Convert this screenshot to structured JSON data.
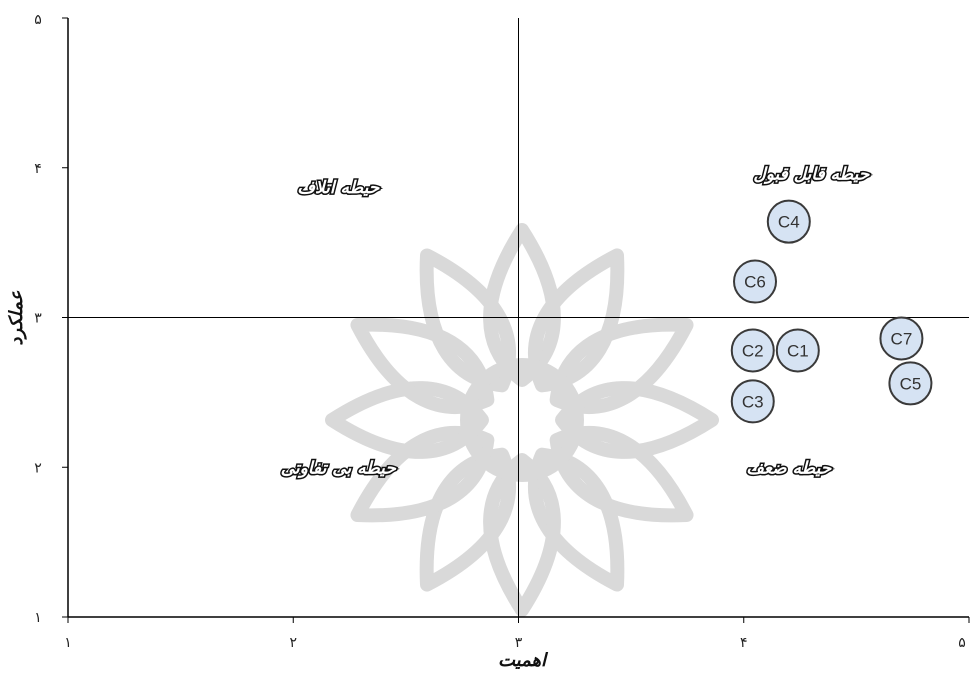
{
  "chart_data": {
    "type": "scatter",
    "xlabel": "اهمیت",
    "ylabel": "عملکرد",
    "xlim": [
      1,
      5
    ],
    "ylim": [
      1,
      5
    ],
    "x_ticks": [
      {
        "value": 1,
        "label": "۱"
      },
      {
        "value": 2,
        "label": "۲"
      },
      {
        "value": 3,
        "label": "۳"
      },
      {
        "value": 4,
        "label": "۴"
      },
      {
        "value": 5,
        "label": "۵"
      }
    ],
    "y_ticks": [
      {
        "value": 1,
        "label": "۱"
      },
      {
        "value": 2,
        "label": "۲"
      },
      {
        "value": 3,
        "label": "۳"
      },
      {
        "value": 4,
        "label": "۴"
      },
      {
        "value": 5,
        "label": "۵"
      }
    ],
    "divider": {
      "x": 3,
      "y": 3
    },
    "quadrants": [
      {
        "label": "حیطه اتلاف",
        "x": 2.2,
        "y": 3.87
      },
      {
        "label": "حیطه قابل قبول",
        "x": 4.3,
        "y": 3.96
      },
      {
        "label": "حیطه بی تفاوتی",
        "x": 2.2,
        "y": 2.0
      },
      {
        "label": "حیطه ضعف",
        "x": 4.2,
        "y": 2.0
      }
    ],
    "points": [
      {
        "label": "C4",
        "x": 4.2,
        "y": 3.64
      },
      {
        "label": "C6",
        "x": 4.05,
        "y": 3.24
      },
      {
        "label": "C2",
        "x": 4.04,
        "y": 2.78
      },
      {
        "label": "C1",
        "x": 4.24,
        "y": 2.78
      },
      {
        "label": "C7",
        "x": 4.7,
        "y": 2.86
      },
      {
        "label": "C5",
        "x": 4.74,
        "y": 2.56
      },
      {
        "label": "C3",
        "x": 4.04,
        "y": 2.44
      }
    ],
    "colors": {
      "point_fill": "#d6e3f3",
      "point_stroke": "#3a3a3a",
      "axis": "#000000",
      "watermark": "#d9d9d9"
    }
  }
}
